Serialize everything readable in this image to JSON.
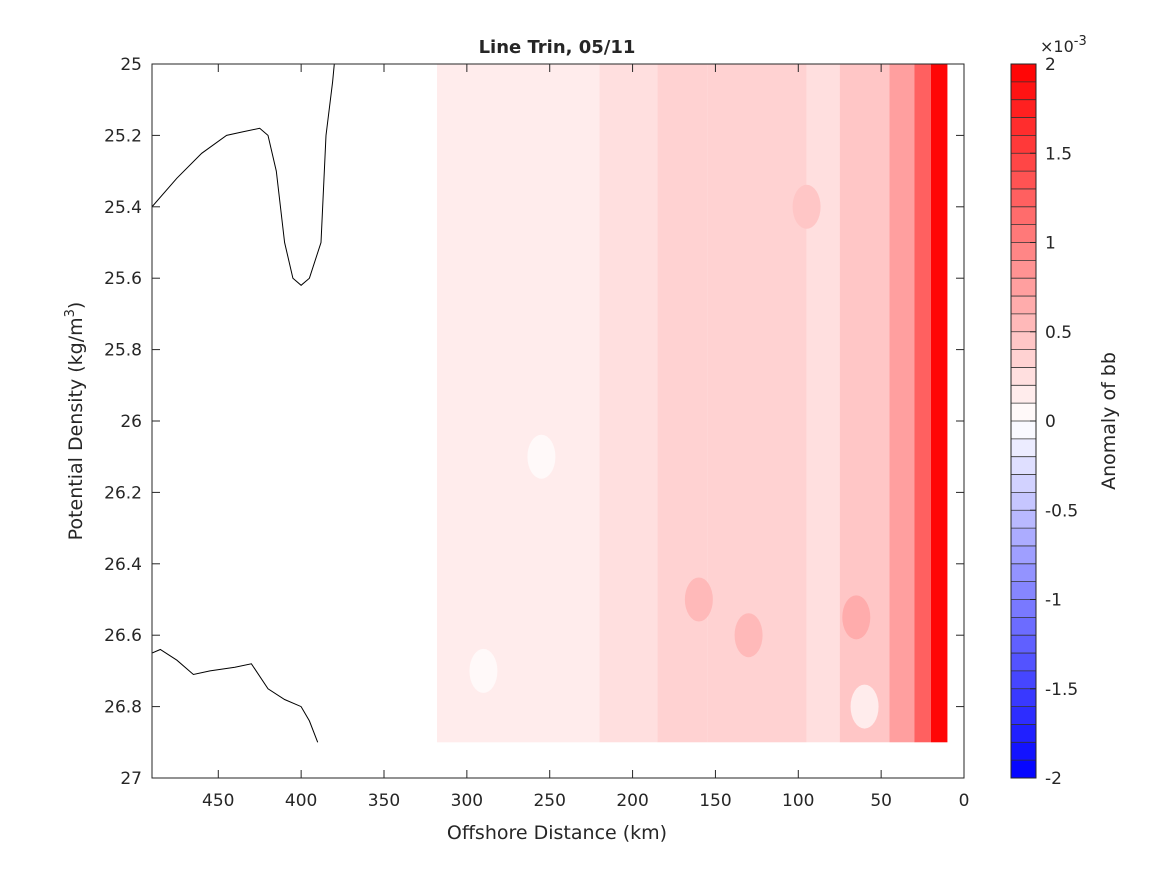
{
  "chart_data": {
    "type": "heatmap",
    "title": "Line Trin, 05/11",
    "xlabel": "Offshore Distance (km)",
    "ylabel_main": "Potential Density (kg/m",
    "ylabel_sup": "3",
    "ylabel_tail": ")",
    "xlim": [
      490,
      0
    ],
    "x_reversed": true,
    "ylim": [
      25,
      27
    ],
    "y_reversed": true,
    "x_ticks": [
      450,
      400,
      350,
      300,
      250,
      200,
      150,
      100,
      50,
      0
    ],
    "y_ticks": [
      25,
      25.2,
      25.4,
      25.6,
      25.8,
      26,
      26.2,
      26.4,
      26.6,
      26.8,
      27
    ],
    "y_tick_labels": [
      "25",
      "25.2",
      "25.4",
      "25.6",
      "25.8",
      "26",
      "26.2",
      "26.4",
      "26.6",
      "26.8",
      "27"
    ],
    "colorbar": {
      "label": "Anomaly of bb",
      "exponent_label": "×10",
      "exponent_sup": "-3",
      "range": [
        -2,
        2
      ],
      "levels": 40,
      "ticks": [
        2,
        1.5,
        1,
        0.5,
        0,
        -0.5,
        -1,
        -1.5,
        -2
      ],
      "tick_labels": [
        "2",
        "1.5",
        "1",
        "0.5",
        "0",
        "-0.5",
        "-1",
        "-1.5",
        "-2"
      ],
      "low_color": "#0000ff",
      "mid_color": "#ffffff",
      "high_color": "#ff0000"
    },
    "field": {
      "data_x_range": [
        318,
        10
      ],
      "data_y_range": [
        25,
        26.9
      ],
      "bands": [
        {
          "x_from": 318,
          "x_to": 220,
          "value": 0.1
        },
        {
          "x_from": 220,
          "x_to": 185,
          "value": 0.2
        },
        {
          "x_from": 185,
          "x_to": 155,
          "value": 0.35
        },
        {
          "x_from": 155,
          "x_to": 95,
          "value": 0.4
        },
        {
          "x_from": 95,
          "x_to": 75,
          "value": 0.3
        },
        {
          "x_from": 75,
          "x_to": 45,
          "value": 0.45
        },
        {
          "x_from": 45,
          "x_to": 30,
          "value": 0.8
        },
        {
          "x_from": 30,
          "x_to": 20,
          "value": 1.3
        },
        {
          "x_from": 20,
          "x_to": 10,
          "value": 1.9
        }
      ],
      "patches": [
        {
          "x": 160,
          "y": 26.5,
          "value": 0.5
        },
        {
          "x": 130,
          "y": 26.6,
          "value": 0.55
        },
        {
          "x": 65,
          "y": 26.55,
          "value": 0.6
        },
        {
          "x": 95,
          "y": 25.4,
          "value": 0.45
        },
        {
          "x": 60,
          "y": 26.8,
          "value": 0.15
        },
        {
          "x": 290,
          "y": 26.7,
          "value": 0.0
        },
        {
          "x": 255,
          "y": 26.1,
          "value": 0.05
        }
      ]
    },
    "contour_lines": [
      {
        "points": [
          [
            490,
            25.4
          ],
          [
            475,
            25.32
          ],
          [
            460,
            25.25
          ],
          [
            445,
            25.2
          ],
          [
            435,
            25.19
          ],
          [
            425,
            25.18
          ],
          [
            420,
            25.2
          ],
          [
            415,
            25.3
          ],
          [
            410,
            25.5
          ],
          [
            405,
            25.6
          ],
          [
            400,
            25.62
          ],
          [
            395,
            25.6
          ],
          [
            388,
            25.5
          ],
          [
            385,
            25.2
          ],
          [
            381,
            25.05
          ],
          [
            380,
            25.0
          ]
        ]
      },
      {
        "points": [
          [
            490,
            26.65
          ],
          [
            485,
            26.64
          ],
          [
            475,
            26.67
          ],
          [
            465,
            26.71
          ],
          [
            455,
            26.7
          ],
          [
            440,
            26.69
          ],
          [
            430,
            26.68
          ],
          [
            420,
            26.75
          ],
          [
            410,
            26.78
          ],
          [
            400,
            26.8
          ],
          [
            395,
            26.84
          ],
          [
            390,
            26.9
          ]
        ]
      }
    ]
  }
}
